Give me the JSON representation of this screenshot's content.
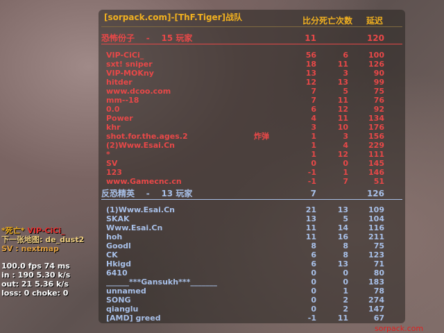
{
  "header": {
    "title": "[sorpack.com]-[ThF.Tiger]战队",
    "score_deaths": "比分死亡次数",
    "latency": "延迟"
  },
  "teams": [
    {
      "name": "恐怖份子",
      "sep": "-",
      "count": "15 玩家",
      "score": "11",
      "latency": "120",
      "color": "#e84848",
      "players": [
        [
          "VIP-CiCi_",
          "56",
          "6",
          "100",
          ""
        ],
        [
          "sxt! sniper",
          "18",
          "11",
          "126",
          ""
        ],
        [
          "VIP-MOKny",
          "13",
          "3",
          "90",
          ""
        ],
        [
          "hitder",
          "12",
          "13",
          "99",
          ""
        ],
        [
          "www.dcoo.com",
          "7",
          "5",
          "75",
          ""
        ],
        [
          "mm--18",
          "7",
          "11",
          "76",
          ""
        ],
        [
          "0.0",
          "6",
          "12",
          "92",
          ""
        ],
        [
          "Power",
          "4",
          "11",
          "134",
          ""
        ],
        [
          "khr",
          "3",
          "10",
          "176",
          ""
        ],
        [
          "shot.for.the.ages.2",
          "1",
          "3",
          "156",
          "炸弹"
        ],
        [
          "(2)Www.Esai.Cn",
          "1",
          "4",
          "229",
          ""
        ],
        [
          "*",
          "1",
          "12",
          "111",
          ""
        ],
        [
          "SV",
          "0",
          "0",
          "145",
          ""
        ],
        [
          "123",
          "-1",
          "1",
          "146",
          ""
        ],
        [
          "www.Gamecnc.cn",
          "-1",
          "7",
          "51",
          ""
        ]
      ]
    },
    {
      "name": "反恐精英",
      "sep": "-",
      "count": "13 玩家",
      "score": "7",
      "latency": "126",
      "color": "#a8c0e8",
      "players": [
        [
          "(1)Www.Esai.Cn",
          "21",
          "13",
          "109",
          ""
        ],
        [
          "SKAK",
          "13",
          "5",
          "104",
          ""
        ],
        [
          "Www.Esai.Cn",
          "11",
          "14",
          "116",
          ""
        ],
        [
          "hoh",
          "11",
          "16",
          "211",
          ""
        ],
        [
          "Goodl",
          "8",
          "8",
          "75",
          ""
        ],
        [
          "CK",
          "6",
          "8",
          "123",
          ""
        ],
        [
          "Hkigd",
          "6",
          "13",
          "71",
          ""
        ],
        [
          "6410",
          "0",
          "0",
          "80",
          ""
        ],
        [
          "______***Gansukh***_______",
          "0",
          "0",
          "183",
          ""
        ],
        [
          "unnamed",
          "0",
          "1",
          "78",
          ""
        ],
        [
          "SONG",
          "0",
          "2",
          "274",
          ""
        ],
        [
          "qianglu",
          "0",
          "2",
          "147",
          ""
        ],
        [
          "[AMD] greed",
          "-1",
          "11",
          "67",
          ""
        ]
      ]
    }
  ],
  "overlay": {
    "death": "*死亡*",
    "killer": "VIP-CiCi_",
    "nextmap": "下一张地图: de_dust2",
    "sv": "SV : nextmap",
    "fps": "100.0 fps   74 ms",
    "in": "in :  190 5.30 k/s",
    "out": "out:  21 5.36 k/s",
    "loss": "loss: 0 choke:  0"
  },
  "watermark": "sorpack.com"
}
